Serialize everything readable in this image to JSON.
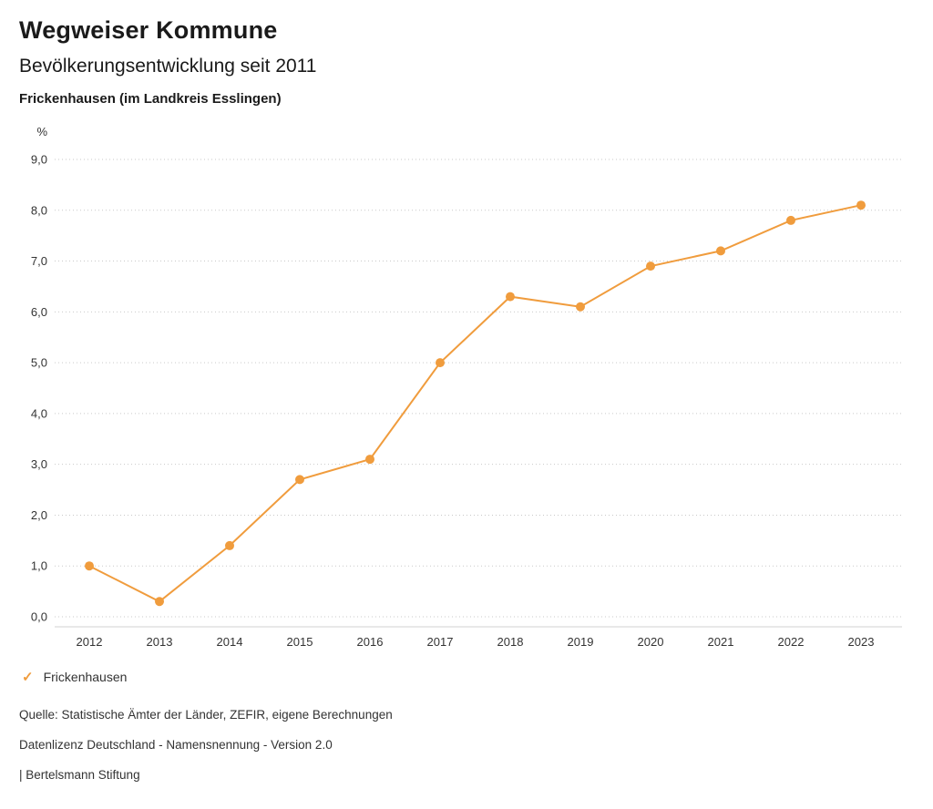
{
  "header": {
    "title": "Wegweiser Kommune",
    "subtitle": "Bevölkerungsentwicklung seit 2011",
    "region": "Frickenhausen (im Landkreis Esslingen)"
  },
  "chart_data": {
    "type": "line",
    "title": "Bevölkerungsentwicklung seit 2011",
    "unit_label": "%",
    "categories": [
      "2012",
      "2013",
      "2014",
      "2015",
      "2016",
      "2017",
      "2018",
      "2019",
      "2020",
      "2021",
      "2022",
      "2023"
    ],
    "series": [
      {
        "name": "Frickenhausen",
        "color": "#f09c3d",
        "values": [
          1.0,
          0.3,
          1.4,
          2.7,
          3.1,
          5.0,
          6.3,
          6.1,
          6.9,
          7.2,
          7.8,
          8.1
        ]
      }
    ],
    "ylim": [
      0,
      9
    ],
    "ytick_step": 1,
    "ytick_labels": [
      "0,0",
      "1,0",
      "2,0",
      "3,0",
      "4,0",
      "5,0",
      "6,0",
      "7,0",
      "8,0",
      "9,0"
    ],
    "grid": "horizontal-dotted",
    "legend_position": "bottom-left"
  },
  "legend": {
    "items": [
      {
        "label": "Frickenhausen",
        "color": "#f09c3d",
        "check_icon": "✓"
      }
    ]
  },
  "footer": {
    "source": "Quelle: Statistische Ämter der Länder, ZEFIR, eigene Berechnungen",
    "license": "Datenlizenz Deutschland - Namensnennung - Version 2.0",
    "attribution": "| Bertelsmann Stiftung"
  }
}
